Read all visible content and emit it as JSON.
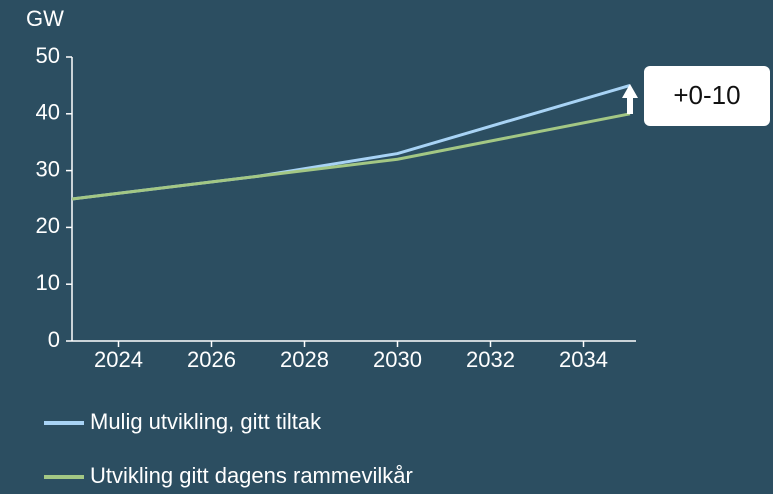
{
  "chart_data": {
    "type": "line",
    "y_label": "GW",
    "x": [
      2023,
      2027,
      2030,
      2035
    ],
    "series": [
      {
        "name": "Mulig utvikling, gitt tiltak",
        "color": "#a8d3f5",
        "values": [
          25,
          29,
          33,
          45
        ]
      },
      {
        "name": "Utvikling gitt dagens rammevilkår",
        "color": "#a3c784",
        "values": [
          25,
          29,
          32,
          40
        ]
      }
    ],
    "xlim": [
      2023,
      2035
    ],
    "xticks": [
      2024,
      2026,
      2028,
      2030,
      2032,
      2034
    ],
    "ylim": [
      0,
      50
    ],
    "yticks": [
      0,
      10,
      20,
      30,
      40,
      50
    ],
    "annotation": "+0-10"
  }
}
